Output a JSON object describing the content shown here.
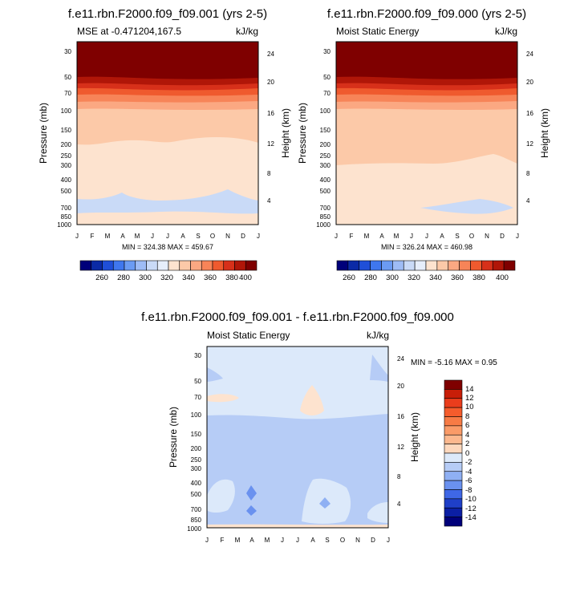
{
  "chart_data": [
    {
      "type": "contour",
      "title": "f.e11.rbn.F2000.f09_f09.001 (yrs 2-5)",
      "left_label": "MSE at -0.471204,167.5",
      "right_label": "kJ/kg",
      "ylabel": "Pressure (mb)",
      "y2label": "Height (km)",
      "pressure_ticks": [
        "30",
        "50",
        "70",
        "100",
        "150",
        "200",
        "250",
        "300",
        "400",
        "500",
        "700",
        "850",
        "1000"
      ],
      "height_ticks": [
        "24",
        "20",
        "16",
        "12",
        "8",
        "4"
      ],
      "month_ticks": [
        "J",
        "F",
        "M",
        "A",
        "M",
        "J",
        "J",
        "A",
        "S",
        "O",
        "N",
        "D",
        "J"
      ],
      "minmax": "MIN = 324.38 MAX = 459.67",
      "colorbar_labels": [
        "260",
        "280",
        "300",
        "320",
        "340",
        "360",
        "380",
        "400"
      ],
      "colorbar_colors": [
        "#00007a",
        "#0b2aa6",
        "#1f4fd8",
        "#3f77ee",
        "#6b9bf3",
        "#9ebcf5",
        "#c9daf7",
        "#e6eefb",
        "#fde3cf",
        "#fcc9a8",
        "#fba882",
        "#f78458",
        "#ef5a2e",
        "#d7301a",
        "#b01608",
        "#7f0000"
      ],
      "ylim": [
        1000,
        30
      ]
    },
    {
      "type": "contour",
      "title": "f.e11.rbn.F2000.f09_f09.000 (yrs 2-5)",
      "left_label": "Moist Static Energy",
      "right_label": "kJ/kg",
      "ylabel": "Pressure (mb)",
      "y2label": "Height (km)",
      "pressure_ticks": [
        "30",
        "50",
        "70",
        "100",
        "150",
        "200",
        "250",
        "300",
        "400",
        "500",
        "700",
        "850",
        "1000"
      ],
      "height_ticks": [
        "24",
        "20",
        "16",
        "12",
        "8",
        "4"
      ],
      "month_ticks": [
        "J",
        "F",
        "M",
        "A",
        "M",
        "J",
        "J",
        "A",
        "S",
        "O",
        "N",
        "D",
        "J"
      ],
      "minmax": "MIN = 326.24 MAX = 460.98",
      "colorbar_labels": [
        "260",
        "280",
        "300",
        "320",
        "340",
        "360",
        "380",
        "400"
      ],
      "colorbar_colors": [
        "#00007a",
        "#0b2aa6",
        "#1f4fd8",
        "#3f77ee",
        "#6b9bf3",
        "#9ebcf5",
        "#c9daf7",
        "#e6eefb",
        "#fde3cf",
        "#fcc9a8",
        "#fba882",
        "#f78458",
        "#ef5a2e",
        "#d7301a",
        "#b01608",
        "#7f0000"
      ],
      "ylim": [
        1000,
        30
      ]
    },
    {
      "type": "contour",
      "title": "f.e11.rbn.F2000.f09_f09.001 - f.e11.rbn.F2000.f09_f09.000",
      "left_label": "Moist Static Energy",
      "right_label": "kJ/kg",
      "ylabel": "Pressure (mb)",
      "y2label": "Height (km)",
      "pressure_ticks": [
        "30",
        "50",
        "70",
        "100",
        "150",
        "200",
        "250",
        "300",
        "400",
        "500",
        "700",
        "850",
        "1000"
      ],
      "height_ticks": [
        "24",
        "20",
        "16",
        "12",
        "8",
        "4"
      ],
      "month_ticks": [
        "J",
        "F",
        "M",
        "A",
        "M",
        "J",
        "J",
        "A",
        "S",
        "O",
        "N",
        "D",
        "J"
      ],
      "minmax": "MIN =  -5.16 MAX =   0.95",
      "colorbar_labels": [
        "14",
        "12",
        "10",
        "8",
        "6",
        "4",
        "2",
        "0",
        "-2",
        "-4",
        "-6",
        "-8",
        "-10",
        "-12",
        "-14"
      ],
      "colorbar_colors": [
        "#7f0000",
        "#c81e08",
        "#ea3d1c",
        "#f55c2c",
        "#f77b45",
        "#fa9b68",
        "#fcb88e",
        "#fdd8bd",
        "#dce9fa",
        "#b6ccf6",
        "#8fb0f3",
        "#6a91ef",
        "#3f67e6",
        "#1f3fc8",
        "#0b1fa4",
        "#00007a"
      ],
      "ylim": [
        1000,
        30
      ]
    }
  ]
}
